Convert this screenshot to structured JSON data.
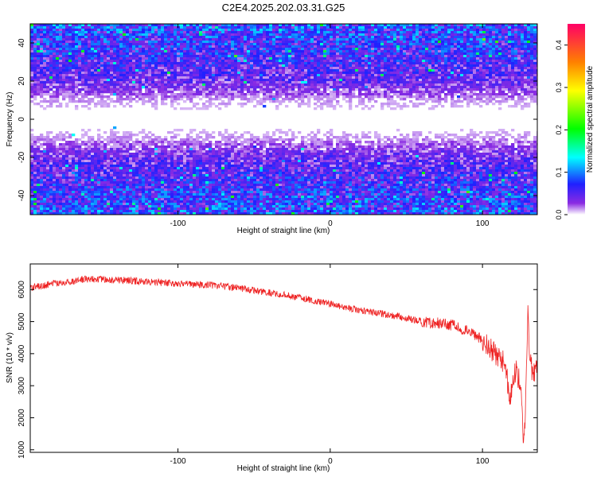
{
  "title": "C2E4.2025.202.03.31.G25",
  "chart_data": [
    {
      "type": "heatmap",
      "title": "C2E4.2025.202.03.31.G25",
      "xlabel": "Height of straight line (km)",
      "ylabel": "Frequency (Hz)",
      "xlim": [
        -197,
        136
      ],
      "ylim": [
        -50,
        50
      ],
      "x_ticks": [
        -100,
        0,
        100
      ],
      "y_ticks": [
        -40,
        -20,
        0,
        20,
        40
      ],
      "grid": false,
      "colorbar": {
        "label": "Normalized spectral amplitude",
        "range": [
          0,
          0.45
        ],
        "ticks": [
          0.0,
          0.1,
          0.2,
          0.3,
          0.4
        ],
        "colors": [
          "#ffffff",
          "#8a2be2",
          "#2020ff",
          "#00ffff",
          "#00ff00",
          "#ffff00",
          "#ff8000",
          "#ff0066"
        ]
      },
      "description_profile": {
        "frequency_hz": [
          -50,
          -40,
          -30,
          -20,
          -10,
          0,
          10,
          20,
          30,
          40,
          50
        ],
        "mean_amplitude": [
          0.07,
          0.06,
          0.05,
          0.035,
          0.01,
          0.0,
          0.01,
          0.035,
          0.05,
          0.06,
          0.07
        ]
      }
    },
    {
      "type": "line",
      "xlabel": "Height of straight line (km)",
      "ylabel": "SNR (10 * v/v)",
      "xlim": [
        -197,
        136
      ],
      "ylim": [
        920,
        6800
      ],
      "x_ticks": [
        -100,
        0,
        100
      ],
      "y_ticks": [
        1000,
        2000,
        3000,
        4000,
        5000,
        6000
      ],
      "grid": false,
      "line_color": "#ee2222",
      "series": [
        {
          "x": [
            -197,
            -180,
            -160,
            -140,
            -120,
            -100,
            -80,
            -60,
            -40,
            -20,
            0,
            20,
            40,
            60,
            80,
            90,
            100,
            110,
            115,
            118,
            120,
            122,
            125,
            127,
            128,
            129,
            130,
            131,
            133,
            136
          ],
          "y": [
            6050,
            6200,
            6330,
            6300,
            6250,
            6180,
            6150,
            6050,
            5900,
            5750,
            5550,
            5350,
            5200,
            5000,
            4900,
            4700,
            4450,
            3900,
            3700,
            2500,
            3100,
            3500,
            3000,
            1100,
            1900,
            3700,
            5500,
            3800,
            3400,
            3600
          ]
        }
      ]
    }
  ]
}
